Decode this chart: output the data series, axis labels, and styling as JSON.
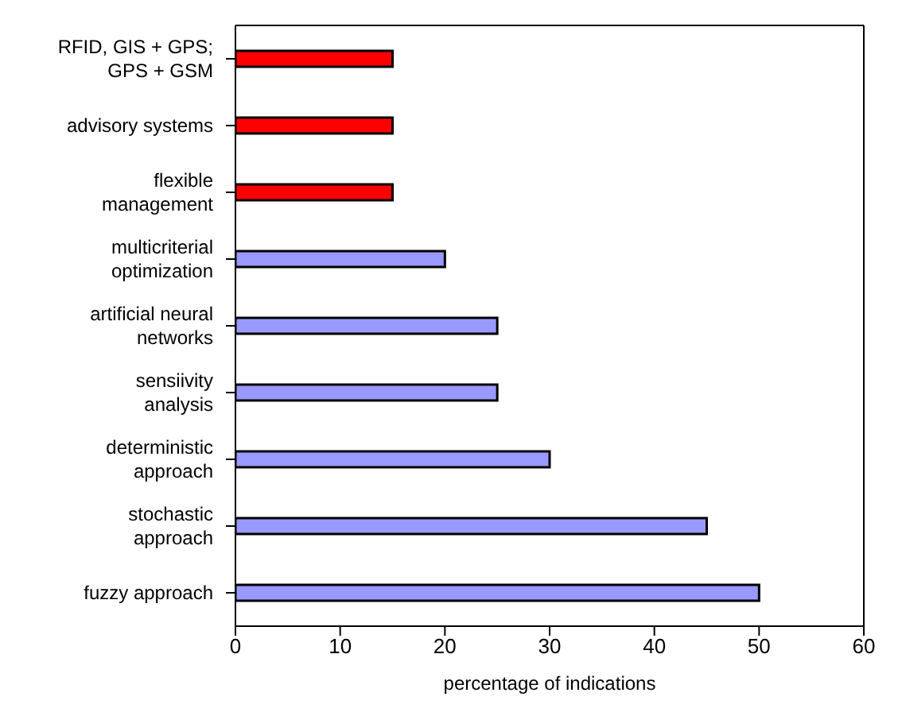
{
  "chart_data": {
    "type": "bar",
    "orientation": "horizontal",
    "xlabel": "percentage of indications",
    "categories": [
      "RFID, GIS + GPS; GPS + GSM",
      "advisory systems",
      "flexible management",
      "multicriterial optimization",
      "artificial neural networks",
      "sensiivity analysis",
      "deterministic approach",
      "stochastic approach",
      "fuzzy approach"
    ],
    "values": [
      15,
      15,
      15,
      20,
      25,
      25,
      30,
      45,
      50
    ],
    "colors": [
      "#ff0000",
      "#ff0000",
      "#ff0000",
      "#9999ff",
      "#9999ff",
      "#9999ff",
      "#9999ff",
      "#9999ff",
      "#9999ff"
    ],
    "xlim": [
      0,
      60
    ],
    "xticks": [
      0,
      10,
      20,
      30,
      40,
      50,
      60
    ],
    "grid": false,
    "legend": false
  }
}
